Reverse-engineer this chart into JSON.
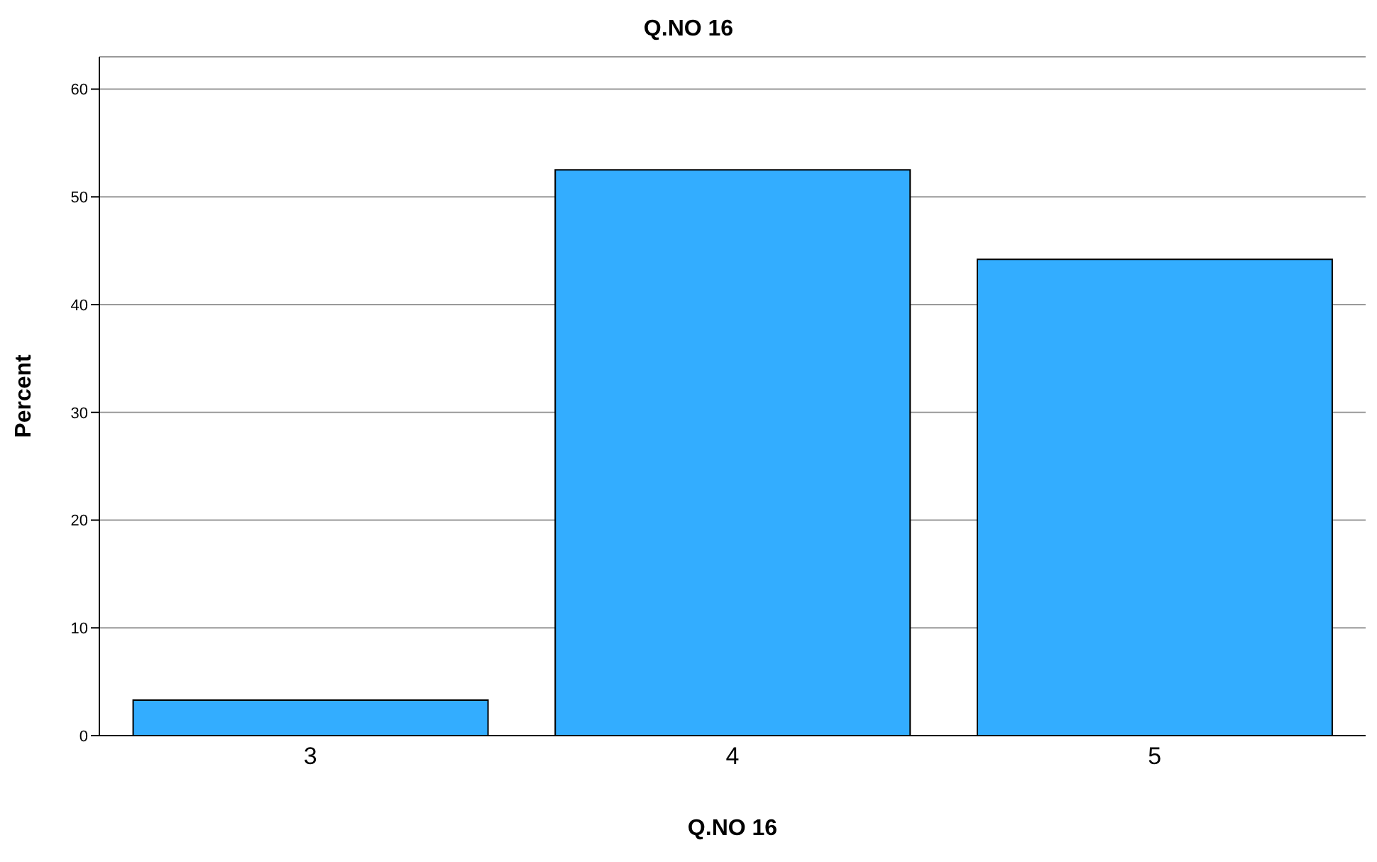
{
  "chart_data": {
    "type": "bar",
    "title": "Q.NO 16",
    "xlabel": "Q.NO 16",
    "ylabel": "Percent",
    "categories": [
      "3",
      "4",
      "5"
    ],
    "values": [
      3.3,
      52.5,
      44.2
    ],
    "color": "#33adff",
    "ylim": [
      0,
      63
    ],
    "yticks": [
      0,
      10,
      20,
      30,
      40,
      50,
      60
    ],
    "grid": "y"
  }
}
